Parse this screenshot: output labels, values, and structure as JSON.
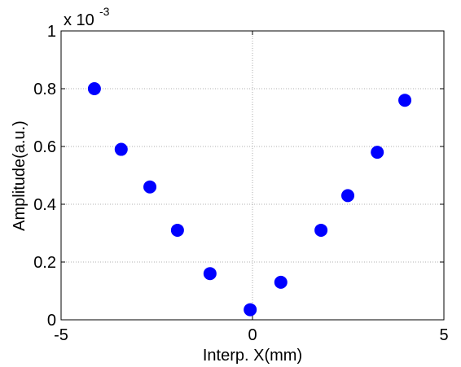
{
  "chart_data": {
    "type": "scatter",
    "x_label": "Interp. X(mm)",
    "y_label": "Amplitude(a.u.)",
    "y_multiplier_base": "x 10",
    "y_multiplier_exponent": "-3",
    "series": [
      {
        "color": "#0000ff",
        "x": [
          -4.13,
          -3.43,
          -2.68,
          -1.96,
          -1.11,
          -0.06,
          0.74,
          1.79,
          2.49,
          3.26,
          3.98
        ],
        "values": [
          0.8,
          0.59,
          0.46,
          0.31,
          0.16,
          0.035,
          0.13,
          0.31,
          0.43,
          0.58,
          0.76
        ]
      }
    ],
    "xlim": [
      -5,
      5
    ],
    "xticks": [
      -5,
      0,
      5
    ],
    "ylim": [
      0,
      1
    ],
    "yticks": [
      0,
      0.2,
      0.4,
      0.6,
      0.8,
      1
    ],
    "grid": true
  }
}
